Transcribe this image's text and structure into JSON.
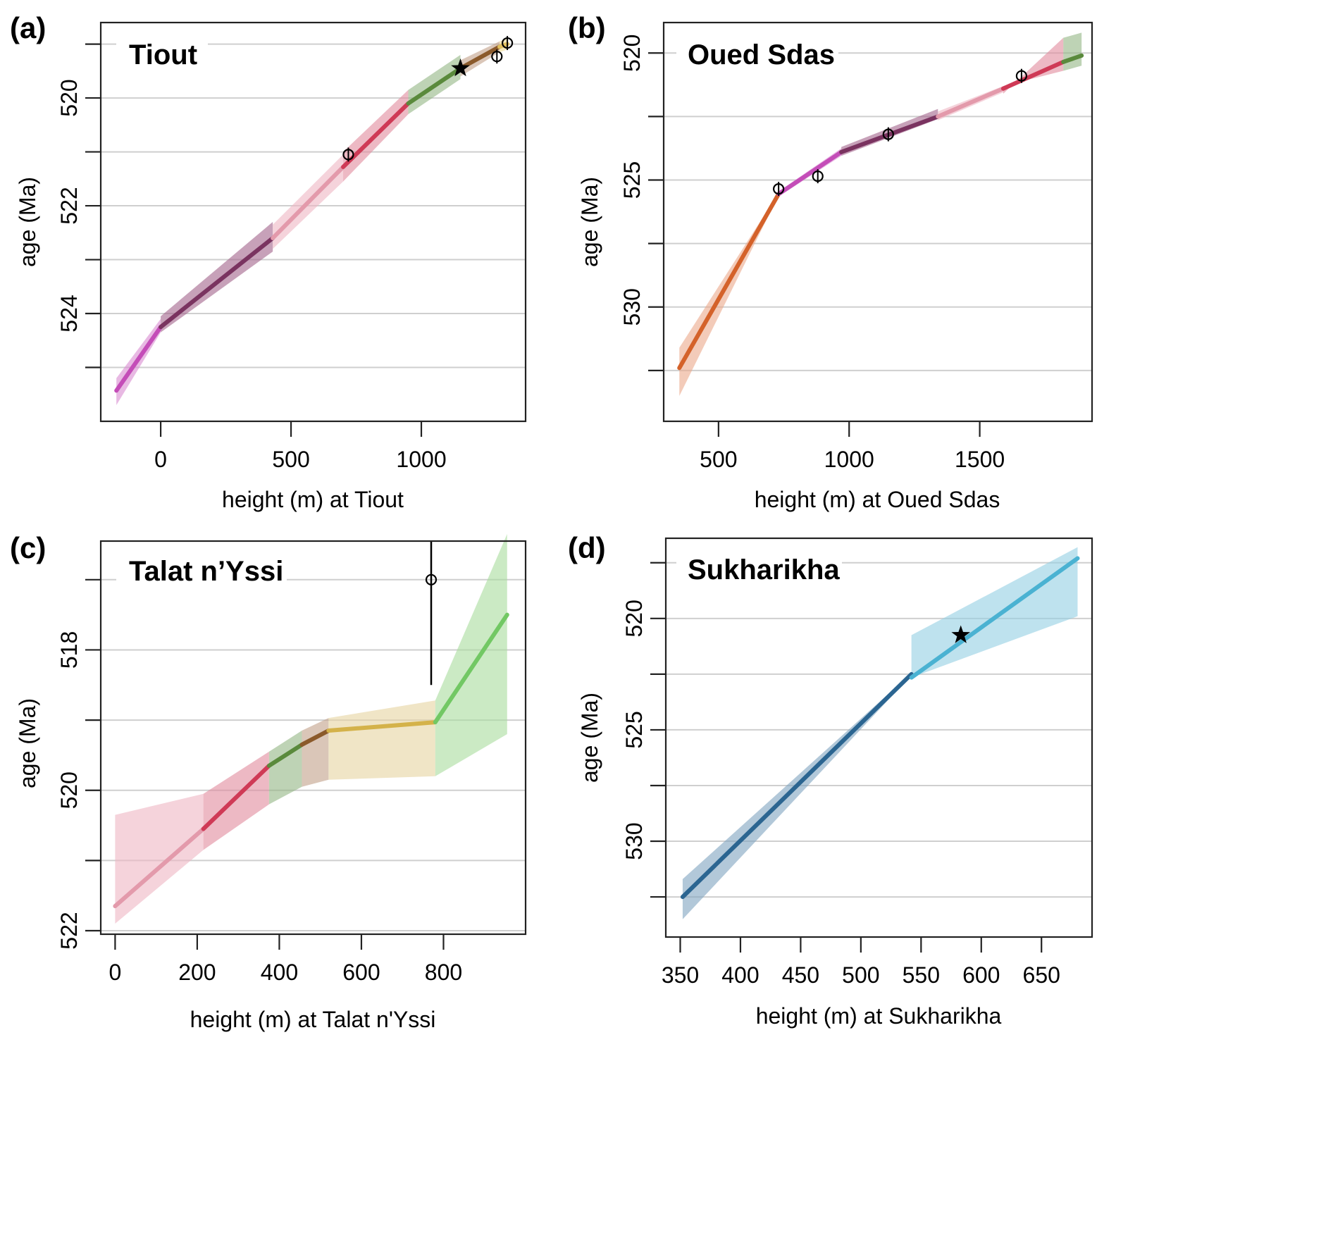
{
  "figure": {
    "description": "Age-height models for four stratigraphic sections with 95% credible envelopes per sedimentation segment"
  },
  "chart_data": [
    {
      "panel": "(a)",
      "type": "line",
      "title": "Tiout",
      "xlabel": "height (m) at Tiout",
      "ylabel": "age (Ma)",
      "xlim": [
        -230,
        1400
      ],
      "ylim": [
        526.0,
        518.6
      ],
      "y_inverted": true,
      "x_ticks": [
        0,
        500,
        1000
      ],
      "x_tick_labels": [
        "0",
        "500",
        "1000"
      ],
      "y_ticks": [
        519,
        520,
        521,
        522,
        523,
        524,
        525
      ],
      "y_tick_labels": [
        "",
        "520",
        "",
        "522",
        "",
        "524",
        ""
      ],
      "grid": "horizontal",
      "segments": [
        {
          "color": "#c44db8",
          "fill": "#d88ad0",
          "x": [
            -170,
            0
          ],
          "median": [
            525.43,
            524.25
          ],
          "lower": [
            525.2,
            524.1
          ],
          "upper": [
            525.7,
            524.35
          ]
        },
        {
          "color": "#7a3360",
          "fill": "#a2628a",
          "x": [
            0,
            430
          ],
          "median": [
            524.25,
            522.6
          ],
          "lower": [
            524.05,
            522.3
          ],
          "upper": [
            524.35,
            522.85
          ]
        },
        {
          "color": "#e39aab",
          "fill": "#eeb6c3",
          "x": [
            430,
            700
          ],
          "median": [
            522.6,
            521.28
          ],
          "lower": [
            522.35,
            521.05
          ],
          "upper": [
            522.8,
            521.55
          ]
        },
        {
          "color": "#cf3a56",
          "fill": "#e18a9c",
          "x": [
            700,
            950
          ],
          "median": [
            521.28,
            520.1
          ],
          "lower": [
            521.0,
            519.85
          ],
          "upper": [
            521.55,
            520.3
          ]
        },
        {
          "color": "#5a8a3c",
          "fill": "#93b583",
          "x": [
            950,
            1150
          ],
          "median": [
            520.1,
            519.45
          ],
          "lower": [
            519.85,
            519.2
          ],
          "upper": [
            520.3,
            519.65
          ]
        },
        {
          "color": "#8b5a2b",
          "fill": "#c2a089",
          "x": [
            1150,
            1300
          ],
          "median": [
            519.45,
            519.05
          ],
          "lower": [
            519.3,
            518.95
          ],
          "upper": [
            519.6,
            519.15
          ]
        },
        {
          "color": "#e0c060",
          "fill": "#efd98f",
          "x": [
            1300,
            1330
          ],
          "median": [
            519.05,
            519.0
          ],
          "lower": [
            518.95,
            518.9
          ],
          "upper": [
            519.15,
            519.1
          ]
        }
      ],
      "observations": [
        {
          "type": "circle",
          "x": 720,
          "age": 521.05
        },
        {
          "type": "circle",
          "x": 1290,
          "age": 519.23
        },
        {
          "type": "circle",
          "x": 1330,
          "age": 518.98
        },
        {
          "type": "star",
          "x": 1150,
          "age": 519.45
        }
      ]
    },
    {
      "panel": "(b)",
      "type": "line",
      "title": "Oued Sdas",
      "xlabel": "height (m) at Oued Sdas",
      "ylabel": "age (Ma)",
      "xlim": [
        290,
        1930
      ],
      "ylim": [
        534.5,
        518.8
      ],
      "y_inverted": true,
      "x_ticks": [
        500,
        1000,
        1500
      ],
      "x_tick_labels": [
        "500",
        "1000",
        "1500"
      ],
      "y_ticks": [
        520,
        522.5,
        525,
        527.5,
        530,
        532.5
      ],
      "y_tick_labels": [
        "520",
        "",
        "525",
        "",
        "530",
        ""
      ],
      "grid": "horizontal",
      "segments": [
        {
          "color": "#d4622a",
          "fill": "#eba88a",
          "x": [
            350,
            730
          ],
          "median": [
            532.4,
            525.55
          ],
          "lower": [
            531.6,
            525.5
          ],
          "upper": [
            533.5,
            525.6
          ]
        },
        {
          "color": "#c44db8",
          "fill": "#d88ad0",
          "x": [
            730,
            970
          ],
          "median": [
            525.55,
            523.9
          ],
          "lower": [
            525.45,
            523.75
          ],
          "upper": [
            525.65,
            524.05
          ]
        },
        {
          "color": "#7a3360",
          "fill": "#a2628a",
          "x": [
            970,
            1340
          ],
          "median": [
            523.9,
            522.5
          ],
          "lower": [
            523.7,
            522.2
          ],
          "upper": [
            524.05,
            522.6
          ]
        },
        {
          "color": "#e39aab",
          "fill": "#eeb6c3",
          "x": [
            1340,
            1590
          ],
          "median": [
            522.5,
            521.4
          ],
          "lower": [
            522.3,
            521.3
          ],
          "upper": [
            522.65,
            521.55
          ]
        },
        {
          "color": "#cf3a56",
          "fill": "#e18a9c",
          "x": [
            1590,
            1820
          ],
          "median": [
            521.4,
            520.35
          ],
          "lower": [
            521.6,
            519.4
          ],
          "upper": [
            521.3,
            520.7
          ]
        },
        {
          "color": "#5a8a3c",
          "fill": "#93b583",
          "x": [
            1820,
            1890
          ],
          "median": [
            520.35,
            520.1
          ],
          "lower": [
            519.4,
            519.2
          ],
          "upper": [
            520.7,
            520.5
          ]
        }
      ],
      "observations": [
        {
          "type": "circle",
          "x": 730,
          "age": 525.35
        },
        {
          "type": "circle",
          "x": 880,
          "age": 524.85
        },
        {
          "type": "circle",
          "x": 1150,
          "age": 523.2
        },
        {
          "type": "circle",
          "x": 1660,
          "age": 520.9
        }
      ]
    },
    {
      "panel": "(c)",
      "type": "line",
      "title": "Talat n’Yssi",
      "xlabel": "height (m) at Talat n'Yssi",
      "ylabel": "age (Ma)",
      "xlim": [
        -35,
        1000
      ],
      "ylim": [
        522.05,
        516.45
      ],
      "y_inverted": true,
      "x_ticks": [
        0,
        200,
        400,
        600,
        800
      ],
      "x_tick_labels": [
        "0",
        "200",
        "400",
        "600",
        "800"
      ],
      "y_ticks": [
        517,
        518,
        519,
        520,
        521,
        522
      ],
      "y_tick_labels": [
        "",
        "518",
        "",
        "520",
        "",
        "522"
      ],
      "grid": "horizontal",
      "segments": [
        {
          "color": "#e39aab",
          "fill": "#eeb6c3",
          "x": [
            0,
            215
          ],
          "median": [
            521.65,
            520.55
          ],
          "lower": [
            520.35,
            520.05
          ],
          "upper": [
            521.9,
            520.85
          ]
        },
        {
          "color": "#cf3a56",
          "fill": "#e18a9c",
          "x": [
            215,
            375
          ],
          "median": [
            520.55,
            519.65
          ],
          "lower": [
            520.05,
            519.45
          ],
          "upper": [
            520.85,
            520.2
          ]
        },
        {
          "color": "#5a8a3c",
          "fill": "#93b583",
          "x": [
            375,
            455
          ],
          "median": [
            519.65,
            519.35
          ],
          "lower": [
            519.45,
            519.15
          ],
          "upper": [
            520.2,
            519.95
          ]
        },
        {
          "color": "#8b5a2b",
          "fill": "#c2a089",
          "x": [
            455,
            520
          ],
          "median": [
            519.35,
            519.15
          ],
          "lower": [
            519.15,
            518.97
          ],
          "upper": [
            519.95,
            519.85
          ]
        },
        {
          "color": "#d4b24a",
          "fill": "#e6d4a0",
          "x": [
            520,
            780
          ],
          "median": [
            519.15,
            519.03
          ],
          "lower": [
            518.97,
            518.72
          ],
          "upper": [
            519.85,
            519.8
          ]
        },
        {
          "color": "#72c864",
          "fill": "#a9dc9c",
          "x": [
            780,
            955
          ],
          "median": [
            519.03,
            517.5
          ],
          "lower": [
            518.72,
            516.35
          ],
          "upper": [
            519.8,
            519.2
          ]
        }
      ],
      "observations": [
        {
          "type": "circle",
          "x": 770,
          "age": 517.0,
          "error_bar": [
            516.4,
            518.5
          ]
        }
      ]
    },
    {
      "panel": "(d)",
      "type": "line",
      "title": "Sukharikha",
      "xlabel": "height (m) at Sukharikha",
      "ylabel": "age (Ma)",
      "xlim": [
        338,
        692
      ],
      "ylim": [
        534.3,
        516.4
      ],
      "y_inverted": true,
      "x_ticks": [
        350,
        400,
        450,
        500,
        550,
        600,
        650
      ],
      "x_tick_labels": [
        "350",
        "400",
        "450",
        "500",
        "550",
        "600",
        "650"
      ],
      "y_ticks": [
        517.5,
        520,
        522.5,
        525,
        527.5,
        530,
        532.5
      ],
      "y_tick_labels": [
        "",
        "520",
        "",
        "525",
        "",
        "530",
        ""
      ],
      "grid": "horizontal",
      "segments": [
        {
          "color": "#2b6591",
          "fill": "#7fa3bf",
          "x": [
            352,
            542
          ],
          "median": [
            532.5,
            522.5
          ],
          "lower": [
            531.7,
            522.45
          ],
          "upper": [
            533.5,
            522.55
          ]
        },
        {
          "color": "#4ab2d2",
          "fill": "#92cfe2",
          "x": [
            542,
            680
          ],
          "median": [
            522.65,
            517.3
          ],
          "lower": [
            520.75,
            516.8
          ],
          "upper": [
            522.65,
            519.9
          ]
        }
      ],
      "observations": [
        {
          "type": "star",
          "x": 583,
          "age": 520.75
        }
      ]
    }
  ]
}
